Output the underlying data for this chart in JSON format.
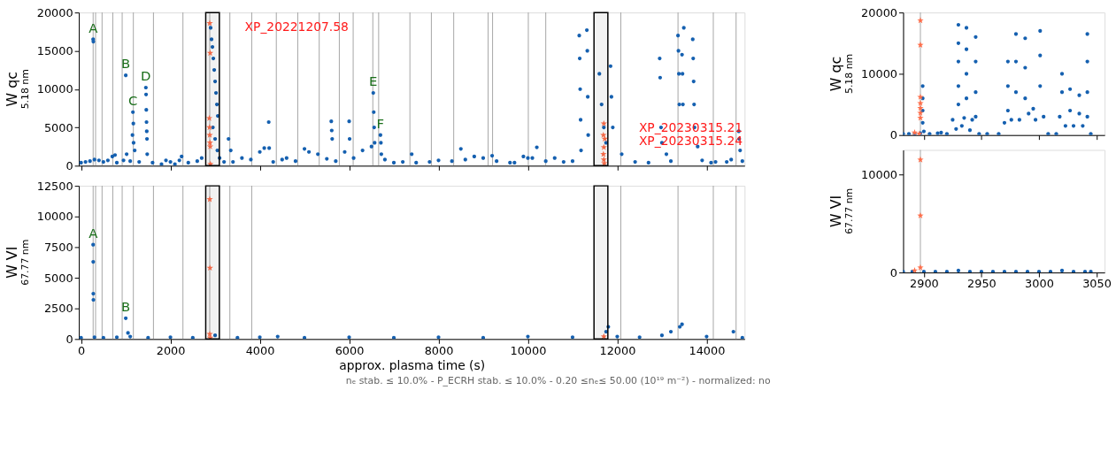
{
  "chart_data": [
    {
      "type": "scatter",
      "ylabel": "W qc$_{5.18 nm}$",
      "xlim": [
        -50,
        14850
      ],
      "xticks": [
        0,
        2000,
        4000,
        6000,
        8000,
        10000,
        12000,
        14000
      ],
      "ylim": [
        0,
        20000
      ],
      "yticks": [
        0,
        5000,
        10000,
        15000,
        20000
      ],
      "tick_labels": "y",
      "series": [
        {
          "color": "#1560b0",
          "marker": "circle",
          "x": [
            0,
            100,
            200,
            270,
            275,
            300,
            400,
            500,
            600,
            700,
            760,
            800,
            950,
            1000,
            1020,
            1100,
            1150,
            1160,
            1170,
            1175,
            1200,
            1300,
            1450,
            1455,
            1460,
            1465,
            1470,
            1475,
            1480,
            1600,
            1800,
            1900,
            2000,
            2100,
            2200,
            2250,
            2400,
            2600,
            2700,
            2900,
            2920,
            2940,
            2960,
            2980,
            3000,
            3020,
            3040,
            3060,
            2950,
            3000,
            3050,
            3100,
            3200,
            3300,
            3350,
            3400,
            3600,
            3800,
            4000,
            4100,
            4200,
            4210,
            4300,
            4500,
            4600,
            4800,
            5000,
            5100,
            5300,
            5500,
            5600,
            5610,
            5620,
            5700,
            5900,
            6000,
            6010,
            6100,
            6300,
            6500,
            6540,
            6550,
            6560,
            6570,
            6700,
            6710,
            6720,
            6800,
            7000,
            7200,
            7400,
            7500,
            7800,
            8000,
            8300,
            8500,
            8600,
            8800,
            9000,
            9200,
            9300,
            9600,
            9700,
            9900,
            10000,
            10100,
            10200,
            10400,
            10600,
            10800,
            11000,
            11150,
            11160,
            11170,
            11180,
            11190,
            11320,
            11330,
            11340,
            11350,
            11600,
            11650,
            11700,
            11750,
            11850,
            11870,
            11900,
            12100,
            12400,
            12700,
            12950,
            12960,
            12980,
            13000,
            13100,
            13200,
            13360,
            13370,
            13380,
            13390,
            13450,
            13460,
            13470,
            13490,
            13690,
            13700,
            13710,
            13720,
            13730,
            13800,
            13900,
            14100,
            14200,
            14450,
            14550,
            14720,
            14730,
            14750,
            14800
          ],
          "values": [
            400,
            500,
            600,
            16500,
            16200,
            800,
            700,
            500,
            700,
            1200,
            1400,
            400,
            700,
            11800,
            1500,
            600,
            4000,
            7000,
            5500,
            3000,
            2000,
            500,
            10200,
            9300,
            7300,
            5700,
            4500,
            3500,
            1500,
            400,
            200,
            700,
            500,
            200,
            700,
            1200,
            400,
            600,
            1000,
            18000,
            16500,
            15500,
            14000,
            12500,
            11000,
            9500,
            8000,
            6500,
            5000,
            3500,
            2000,
            1000,
            500,
            3500,
            2000,
            500,
            1000,
            800,
            1800,
            2300,
            5700,
            2300,
            500,
            800,
            1000,
            600,
            2200,
            1800,
            1500,
            900,
            5800,
            4600,
            3500,
            600,
            1800,
            5800,
            3500,
            1000,
            2000,
            2500,
            9500,
            7000,
            5000,
            3000,
            4000,
            3000,
            1500,
            800,
            400,
            500,
            1500,
            400,
            500,
            700,
            600,
            2200,
            800,
            1200,
            1000,
            1300,
            600,
            400,
            400,
            1200,
            1000,
            1000,
            2400,
            600,
            1000,
            500,
            600,
            17000,
            14000,
            10000,
            6000,
            2000,
            17700,
            15000,
            9000,
            4000,
            12000,
            8000,
            5000,
            3000,
            13000,
            9000,
            5000,
            1500,
            500,
            400,
            14000,
            11500,
            5000,
            3000,
            1500,
            600,
            17000,
            15000,
            12000,
            8000,
            14500,
            12000,
            8000,
            18000,
            16500,
            14000,
            11000,
            8000,
            5000,
            2500,
            700,
            400,
            500,
            500,
            800,
            4500,
            3500,
            2000,
            600
          ]
        },
        {
          "color": "#ff6e4a",
          "marker": "star",
          "x": [
            2880,
            2890,
            2870,
            2875,
            2880,
            2885,
            2890,
            2895,
            11700,
            11690,
            11720,
            11700,
            11690,
            11700,
            11710
          ],
          "values": [
            18600,
            14700,
            6200,
            5000,
            4000,
            3000,
            2500,
            200,
            5500,
            4000,
            3500,
            2400,
            1500,
            800,
            300
          ]
        }
      ],
      "ref_lines": [
        {
          "axis": "x",
          "value": 270,
          "color": "#808080"
        },
        {
          "axis": "x",
          "value": 325,
          "color": "#808080"
        },
        {
          "axis": "x",
          "value": 470,
          "color": "#808080"
        },
        {
          "axis": "x",
          "value": 710,
          "color": "#808080"
        },
        {
          "axis": "x",
          "value": 920,
          "color": "#808080"
        },
        {
          "axis": "x",
          "value": 1170,
          "color": "#808080"
        },
        {
          "axis": "x",
          "value": 1620,
          "color": "#808080"
        },
        {
          "axis": "x",
          "value": 2280,
          "color": "#808080"
        },
        {
          "axis": "x",
          "value": 2880,
          "color": "#808080"
        },
        {
          "axis": "x",
          "value": 3330,
          "color": "#808080"
        },
        {
          "axis": "x",
          "value": 3820,
          "color": "#808080"
        },
        {
          "axis": "x",
          "value": 4370,
          "color": "#808080"
        },
        {
          "axis": "x",
          "value": 4850,
          "color": "#808080"
        },
        {
          "axis": "x",
          "value": 5330,
          "color": "#808080"
        },
        {
          "axis": "x",
          "value": 5780,
          "color": "#808080"
        },
        {
          "axis": "x",
          "value": 6090,
          "color": "#808080"
        },
        {
          "axis": "x",
          "value": 6530,
          "color": "#808080"
        },
        {
          "axis": "x",
          "value": 6660,
          "color": "#808080"
        },
        {
          "axis": "x",
          "value": 7360,
          "color": "#808080"
        },
        {
          "axis": "x",
          "value": 7840,
          "color": "#808080"
        },
        {
          "axis": "x",
          "value": 8340,
          "color": "#808080"
        },
        {
          "axis": "x",
          "value": 9110,
          "color": "#808080"
        },
        {
          "axis": "x",
          "value": 9210,
          "color": "#808080"
        },
        {
          "axis": "x",
          "value": 10010,
          "color": "#808080"
        },
        {
          "axis": "x",
          "value": 10400,
          "color": "#808080"
        },
        {
          "axis": "x",
          "value": 12080,
          "color": "#808080"
        },
        {
          "axis": "x",
          "value": 13360,
          "color": "#808080"
        },
        {
          "axis": "x",
          "value": 14150,
          "color": "#808080"
        },
        {
          "axis": "x",
          "value": 14660,
          "color": "#808080"
        }
      ],
      "bands": [
        {
          "axis": "x",
          "from": 2790,
          "to": 3095,
          "color": "#000000"
        },
        {
          "axis": "x",
          "from": 11480,
          "to": 11790,
          "color": "#000000"
        }
      ],
      "annotations": [
        {
          "text": "A",
          "x": 270,
          "y": 16500
        },
        {
          "text": "B",
          "x": 1000,
          "y": 11800
        },
        {
          "text": "C",
          "x": 1160,
          "y": 7000
        },
        {
          "text": "D",
          "x": 1450,
          "y": 10200
        },
        {
          "text": "E",
          "x": 6540,
          "y": 9500
        },
        {
          "text": "F",
          "x": 6700,
          "y": 4000
        },
        {
          "text": "XP_20221207.58",
          "x": 2880,
          "y": 18600
        },
        {
          "text": "XP_20230315.21\nXP_20230315.24",
          "x": 11700,
          "y": 5500
        }
      ]
    },
    {
      "type": "scatter",
      "ylabel": "W VI$_{67.77 nm}$",
      "xlabel": "approx. plasma time (s)",
      "xlim": [
        -50,
        14850
      ],
      "xticks": [
        0,
        2000,
        4000,
        6000,
        8000,
        10000,
        12000,
        14000
      ],
      "ylim": [
        0,
        12500
      ],
      "yticks": [
        0,
        2500,
        5000,
        7500,
        10000,
        12500
      ],
      "series": [
        {
          "color": "#1560b0",
          "marker": "circle",
          "x": [
            0,
            270,
            272,
            274,
            276,
            300,
            500,
            800,
            1000,
            1050,
            1100,
            1500,
            2000,
            2500,
            3000,
            3500,
            4000,
            4400,
            5000,
            6000,
            7000,
            8000,
            9000,
            10000,
            11000,
            11750,
            11800,
            12000,
            12500,
            13000,
            13200,
            13400,
            13450,
            14000,
            14600,
            14800
          ],
          "values": [
            100,
            7700,
            6300,
            3700,
            3200,
            150,
            100,
            150,
            1700,
            500,
            200,
            100,
            150,
            100,
            300,
            100,
            150,
            200,
            100,
            150,
            100,
            150,
            100,
            200,
            150,
            600,
            1000,
            200,
            150,
            300,
            600,
            1000,
            1200,
            200,
            600,
            100
          ]
        },
        {
          "color": "#ff6e4a",
          "marker": "star",
          "x": [
            2880,
            2885,
            2880,
            2890,
            11700
          ],
          "values": [
            11400,
            5800,
            400,
            100,
            200
          ]
        }
      ],
      "ref_lines": [
        {
          "axis": "x",
          "value": 270,
          "color": "#808080"
        },
        {
          "axis": "x",
          "value": 325,
          "color": "#808080"
        },
        {
          "axis": "x",
          "value": 470,
          "color": "#808080"
        },
        {
          "axis": "x",
          "value": 710,
          "color": "#808080"
        },
        {
          "axis": "x",
          "value": 920,
          "color": "#808080"
        },
        {
          "axis": "x",
          "value": 1170,
          "color": "#808080"
        },
        {
          "axis": "x",
          "value": 1620,
          "color": "#808080"
        },
        {
          "axis": "x",
          "value": 2280,
          "color": "#808080"
        },
        {
          "axis": "x",
          "value": 2880,
          "color": "#808080"
        },
        {
          "axis": "x",
          "value": 3330,
          "color": "#808080"
        },
        {
          "axis": "x",
          "value": 3820,
          "color": "#808080"
        },
        {
          "axis": "x",
          "value": 12080,
          "color": "#808080"
        },
        {
          "axis": "x",
          "value": 13360,
          "color": "#808080"
        },
        {
          "axis": "x",
          "value": 14150,
          "color": "#808080"
        },
        {
          "axis": "x",
          "value": 14660,
          "color": "#808080"
        }
      ],
      "bands": [
        {
          "axis": "x",
          "from": 2790,
          "to": 3095,
          "color": "#000000"
        },
        {
          "axis": "x",
          "from": 11480,
          "to": 11790,
          "color": "#000000"
        }
      ],
      "annotations": [
        {
          "text": "A",
          "x": 270,
          "y": 7700
        },
        {
          "text": "B",
          "x": 1000,
          "y": 1700
        },
        "nₑ stab. ≤ 10.0%   -   P_ECRH stab. ≤ 10.0%   -   0.20 ≤nₑ≤ 50.00 (10¹⁹ m⁻²)   -   normalized: no"
      ]
    },
    {
      "type": "scatter",
      "ylabel": "W qc$_{5.18 nm}$",
      "xlim": [
        2882,
        3057
      ],
      "xticks": [
        2900,
        2950,
        3000,
        3050
      ],
      "ylim": [
        0,
        20000
      ],
      "yticks": [
        0,
        10000,
        20000
      ],
      "tick_labels": "y",
      "series": [
        {
          "color": "#1560b0",
          "marker": "circle",
          "x": [
            2882,
            2887,
            2892,
            2897,
            2899,
            2899,
            2899,
            2899,
            2900,
            2905,
            2912,
            2915,
            2920,
            2925,
            2928,
            2930,
            2930,
            2930,
            2930,
            2930,
            2933,
            2935,
            2937,
            2937,
            2937,
            2937,
            2940,
            2942,
            2945,
            2945,
            2945,
            2945,
            2948,
            2955,
            2965,
            2970,
            2973,
            2973,
            2973,
            2976,
            2980,
            2980,
            2980,
            2983,
            2988,
            2988,
            2988,
            2991,
            2995,
            2997,
            3001,
            3001,
            3001,
            3004,
            3008,
            3015,
            3018,
            3020,
            3020,
            3023,
            3027,
            3027,
            3030,
            3035,
            3035,
            3038,
            3042,
            3042,
            3042,
            3042,
            3045
          ],
          "values": [
            200,
            200,
            200,
            300,
            8000,
            6000,
            4000,
            2000,
            600,
            200,
            300,
            400,
            200,
            2500,
            1000,
            18000,
            15000,
            12000,
            8000,
            5000,
            1500,
            2800,
            17500,
            14000,
            10000,
            6000,
            800,
            2500,
            16000,
            12000,
            7000,
            3000,
            200,
            200,
            200,
            2000,
            12000,
            8000,
            4000,
            2500,
            16500,
            12000,
            7000,
            2500,
            15800,
            11000,
            6000,
            3500,
            4300,
            2500,
            17000,
            13000,
            8000,
            3000,
            200,
            200,
            3000,
            10000,
            7000,
            1500,
            7500,
            4000,
            1500,
            6500,
            3500,
            1500,
            16500,
            12000,
            7000,
            3000,
            200
          ]
        },
        {
          "color": "#ff6e4a",
          "marker": "star",
          "x": [
            2897,
            2897,
            2897,
            2897,
            2897,
            2897,
            2897,
            2892,
            2896
          ],
          "values": [
            18700,
            14700,
            6200,
            5200,
            4400,
            3600,
            2800,
            400,
            200
          ]
        }
      ],
      "ref_lines": [
        {
          "axis": "x",
          "value": 2897,
          "color": "#808080"
        }
      ]
    },
    {
      "type": "scatter",
      "ylabel": "W VI$_{67.77 nm}$",
      "xlim": [
        2882,
        3057
      ],
      "xticks": [
        2900,
        2950,
        3000,
        3050
      ],
      "ylim": [
        0,
        12500
      ],
      "yticks": [
        0,
        10000
      ],
      "series": [
        {
          "color": "#1560b0",
          "marker": "circle",
          "x": [
            2882,
            2890,
            2900,
            2910,
            2920,
            2930,
            2940,
            2950,
            2960,
            2970,
            2980,
            2990,
            3000,
            3010,
            3020,
            3030,
            3040,
            3045
          ],
          "values": [
            100,
            100,
            100,
            100,
            100,
            200,
            100,
            100,
            100,
            100,
            100,
            100,
            100,
            100,
            200,
            100,
            100,
            100
          ]
        },
        {
          "color": "#ff6e4a",
          "marker": "star",
          "x": [
            2897,
            2897,
            2897,
            2892
          ],
          "values": [
            11500,
            5800,
            500,
            200
          ]
        }
      ],
      "ref_lines": [
        {
          "axis": "x",
          "value": 2897,
          "color": "#808080"
        }
      ]
    }
  ]
}
